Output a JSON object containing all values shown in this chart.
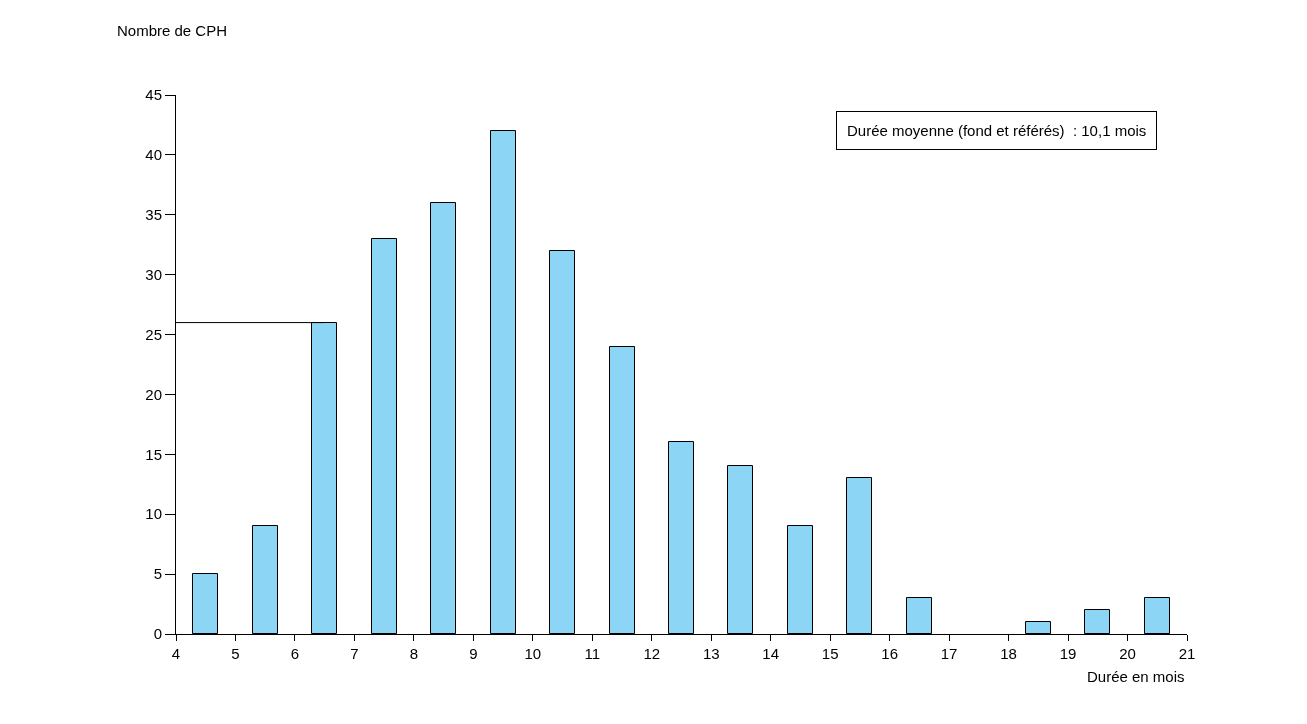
{
  "chart_data": {
    "type": "histogram",
    "ylabel": "Nombre de CPH",
    "xlabel": "Durée en mois",
    "annotations": [
      "Durée moyenne (fond et référés)  : 10,1 mois"
    ],
    "bins": [
      4,
      5,
      6,
      7,
      8,
      9,
      10,
      11,
      12,
      13,
      14,
      15,
      16,
      17,
      18,
      19,
      20,
      21
    ],
    "values": [
      5,
      9,
      26,
      33,
      36,
      42,
      32,
      24,
      16,
      14,
      9,
      13,
      3,
      0,
      1,
      2,
      3
    ],
    "color": "#8dd5f5",
    "xlim": [
      4,
      21
    ],
    "xticks": [
      4,
      5,
      6,
      7,
      8,
      9,
      10,
      11,
      12,
      13,
      14,
      15,
      16,
      17,
      18,
      19,
      20,
      21
    ],
    "ylim": [
      0,
      45
    ],
    "yticks": [
      0,
      5,
      10,
      15,
      20,
      25,
      30,
      35,
      40,
      45
    ],
    "ref_lines": [
      {
        "axis": "y",
        "value": 26,
        "color": "#000000"
      }
    ]
  }
}
